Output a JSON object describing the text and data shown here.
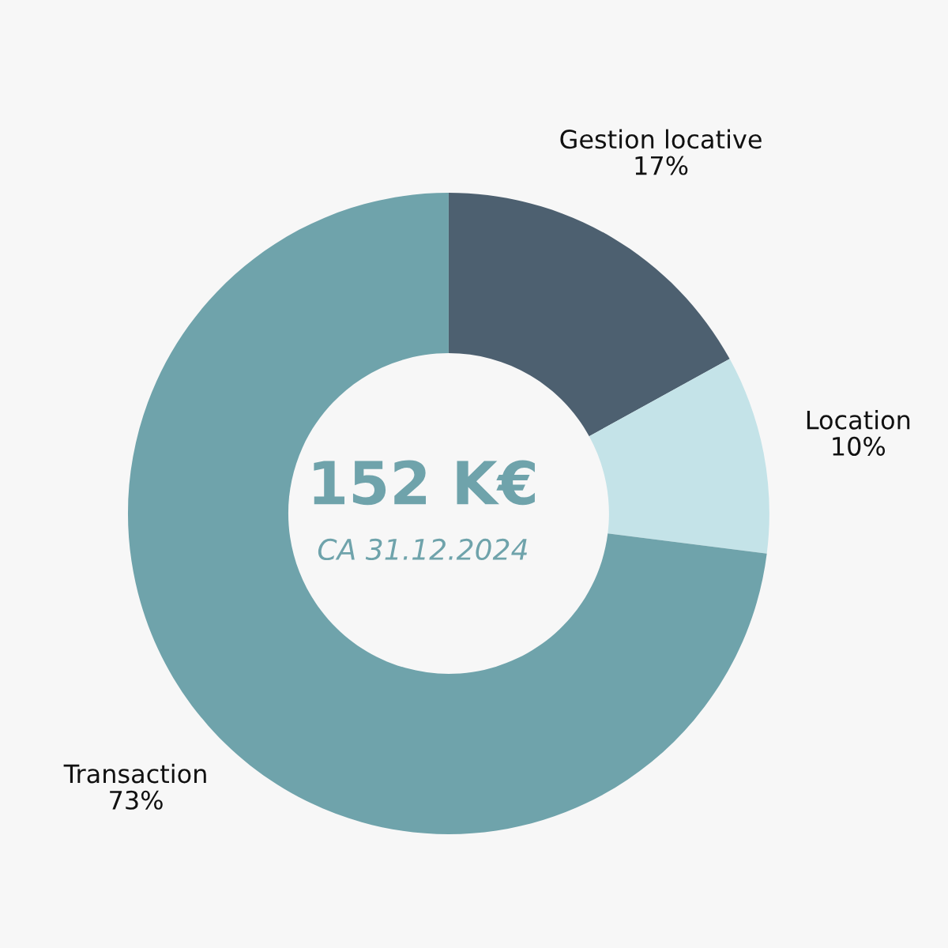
{
  "chart_data": {
    "type": "donut",
    "title": "152 K€",
    "subtitle": "CA 31.12.2024",
    "categories": [
      "Gestion locative",
      "Location",
      "Transaction"
    ],
    "values": [
      17,
      10,
      73
    ],
    "value_labels": [
      "17%",
      "10%",
      "73%"
    ],
    "colors": [
      "#4d6070",
      "#c4e3e8",
      "#6fa3ab"
    ],
    "legend": false
  }
}
